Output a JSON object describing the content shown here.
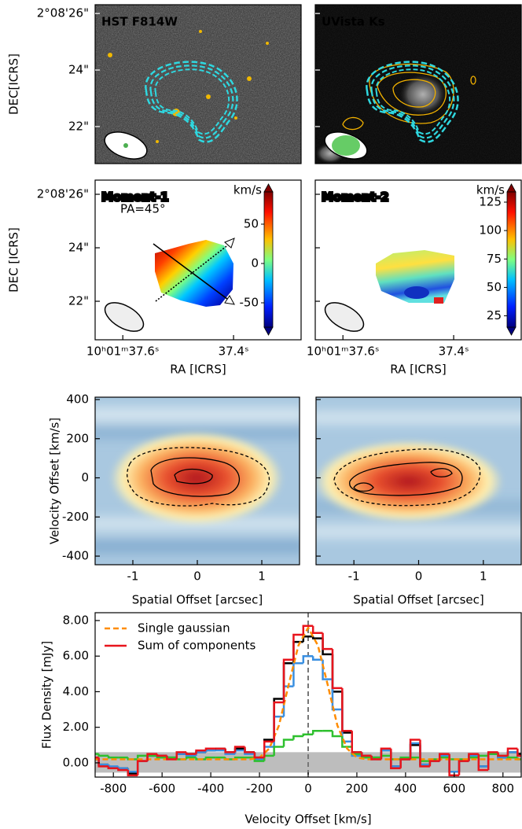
{
  "chart_data": [
    {
      "type": "image",
      "title": "HST F814W",
      "ylabel": "DEC[ICRS]",
      "ylim": [
        20.69,
        26.31
      ],
      "yticks": [
        {
          "value": 26,
          "label": "2°08'26\""
        },
        {
          "value": 24,
          "label": "24\""
        },
        {
          "value": 22,
          "label": "22\""
        }
      ]
    },
    {
      "type": "image",
      "title": "UVista Ks",
      "ylim": [
        20.69,
        26.31
      ]
    },
    {
      "type": "map",
      "title": "Moment-1",
      "annotation": "PA=45°",
      "ylabel": "DEC [ICRS]",
      "xlabel": "RA [ICRS]",
      "ylim": [
        20.56,
        26.53
      ],
      "yticks": [
        {
          "value": 26,
          "label": "2°08'26\""
        },
        {
          "value": 24,
          "label": "24\""
        },
        {
          "value": 22,
          "label": "22\""
        }
      ],
      "xlim": [
        37.65,
        37.278
      ],
      "xticks": [
        {
          "value": 37.6,
          "label": "10ʰ01ᵐ37.6ˢ"
        },
        {
          "value": 37.4,
          "label": "37.4ˢ"
        }
      ],
      "colorbar": {
        "label": "km/s",
        "lim": [
          -81,
          91
        ],
        "ticks": [
          50,
          0,
          -50
        ]
      }
    },
    {
      "type": "map",
      "title": "Moment-2",
      "xlabel": "RA [ICRS]",
      "ylim": [
        20.56,
        26.53
      ],
      "xlim": [
        37.65,
        37.278
      ],
      "xticks": [
        {
          "value": 37.6,
          "label": "10ʰ01ᵐ37.6ˢ"
        },
        {
          "value": 37.4,
          "label": "37.4ˢ"
        }
      ],
      "colorbar": {
        "label": "km/s",
        "lim": [
          15,
          134
        ],
        "ticks": [
          125,
          100,
          75,
          50,
          25
        ]
      }
    },
    {
      "type": "pv",
      "ylabel": "Velocity Offset [km/s]",
      "xlabel": "Spatial Offset [arcsec]",
      "xlim": [
        -1.585,
        1.585
      ],
      "ylim": [
        -444,
        412
      ],
      "xticks": [
        -1,
        0,
        1
      ],
      "yticks": [
        400,
        200,
        0,
        -200,
        -400
      ]
    },
    {
      "type": "pv",
      "xlabel": "Spatial Offset [arcsec]",
      "xlim": [
        -1.585,
        1.585
      ],
      "ylim": [
        -444,
        412
      ],
      "xticks": [
        -1,
        0,
        1
      ]
    },
    {
      "type": "line",
      "xlabel": "Velocity Offset [km/s]",
      "ylabel": "Flux Density [mJy]",
      "xlim": [
        -875,
        875
      ],
      "ylim": [
        -0.8,
        8.44
      ],
      "xticks": [
        -800,
        -600,
        -400,
        -200,
        0,
        200,
        400,
        600,
        800
      ],
      "yticks": [
        {
          "value": 0,
          "label": "0.00"
        },
        {
          "value": 2,
          "label": "2.00"
        },
        {
          "value": 4,
          "label": "4.00"
        },
        {
          "value": 6,
          "label": "6.00"
        },
        {
          "value": 8,
          "label": "8.00"
        }
      ],
      "band": [
        -0.55,
        0.6
      ],
      "vline": 0,
      "legend": "upper left",
      "x": [
        -880,
        -840,
        -800,
        -760,
        -720,
        -680,
        -640,
        -600,
        -560,
        -520,
        -480,
        -440,
        -400,
        -360,
        -320,
        -280,
        -240,
        -200,
        -160,
        -120,
        -80,
        -40,
        0,
        40,
        80,
        120,
        160,
        200,
        240,
        280,
        320,
        360,
        400,
        440,
        480,
        520,
        560,
        600,
        640,
        680,
        720,
        760,
        800,
        840,
        880
      ],
      "series": [
        {
          "color": "#000000",
          "drawstyle": "steps-mid",
          "values": [
            0.2,
            -0.1,
            -0.3,
            -0.3,
            -0.6,
            0.1,
            0.4,
            0.4,
            0.3,
            0.5,
            0.5,
            0.6,
            0.7,
            0.8,
            0.6,
            0.8,
            0.6,
            0.3,
            1.3,
            3.6,
            5.6,
            6.8,
            7.1,
            7.0,
            6.1,
            4.0,
            1.7,
            0.6,
            0.4,
            0.3,
            0.7,
            -0.2,
            0.2,
            1.0,
            -0.1,
            0.1,
            0.4,
            -0.5,
            0.1,
            0.4,
            -0.2,
            0.5,
            0.3,
            0.6,
            0.5
          ]
        },
        {
          "color": "#3a8fe0",
          "drawstyle": "steps-mid",
          "values": [
            0.2,
            -0.1,
            -0.2,
            -0.3,
            -0.5,
            0.1,
            0.4,
            0.3,
            0.3,
            0.5,
            0.4,
            0.6,
            0.7,
            0.7,
            0.5,
            0.7,
            0.5,
            0.2,
            0.9,
            2.6,
            4.3,
            5.6,
            6.0,
            5.8,
            4.7,
            3.0,
            1.2,
            0.4,
            0.3,
            0.2,
            0.7,
            -0.2,
            0.2,
            1.1,
            -0.1,
            0.1,
            0.4,
            -0.5,
            0.1,
            0.4,
            -0.2,
            0.5,
            0.3,
            0.6,
            0.4
          ]
        },
        {
          "color": "#2ec02e",
          "drawstyle": "steps-mid",
          "values": [
            0.5,
            0.4,
            0.3,
            0.3,
            0.2,
            0.4,
            0.4,
            0.3,
            0.3,
            0.2,
            0.3,
            0.2,
            0.3,
            0.3,
            0.2,
            0.3,
            0.3,
            0.1,
            0.4,
            0.9,
            1.3,
            1.5,
            1.6,
            1.8,
            1.8,
            1.5,
            0.9,
            0.5,
            0.3,
            0.3,
            0.4,
            0.2,
            0.3,
            0.3,
            0.1,
            0.2,
            0.3,
            0.2,
            0.2,
            0.3,
            0.4,
            0.5,
            0.4,
            0.3,
            0.2
          ]
        },
        {
          "name": "Single gaussian",
          "color": "#ff8c00",
          "linestyle": "dashed",
          "values": [
            0.2,
            0.2,
            0.2,
            0.2,
            0.2,
            0.2,
            0.2,
            0.2,
            0.2,
            0.2,
            0.2,
            0.2,
            0.2,
            0.2,
            0.2,
            0.2,
            0.2,
            0.3,
            0.8,
            2.1,
            4.4,
            6.6,
            7.6,
            6.6,
            4.4,
            2.1,
            0.8,
            0.3,
            0.2,
            0.2,
            0.2,
            0.2,
            0.2,
            0.2,
            0.2,
            0.2,
            0.2,
            0.2,
            0.2,
            0.2,
            0.2,
            0.2,
            0.2,
            0.2,
            0.2
          ]
        },
        {
          "name": "Sum of components",
          "color": "#e8141c",
          "drawstyle": "steps-mid",
          "values": [
            0.3,
            -0.2,
            -0.3,
            -0.4,
            -0.7,
            0.1,
            0.5,
            0.4,
            0.2,
            0.6,
            0.5,
            0.7,
            0.8,
            0.8,
            0.6,
            0.9,
            0.6,
            0.3,
            1.2,
            3.4,
            5.8,
            7.2,
            7.7,
            7.3,
            6.4,
            4.2,
            1.8,
            0.6,
            0.4,
            0.2,
            0.8,
            -0.3,
            0.2,
            1.3,
            -0.2,
            0.1,
            0.5,
            -0.7,
            0.1,
            0.5,
            -0.4,
            0.6,
            0.4,
            0.8,
            0.4
          ]
        }
      ]
    }
  ]
}
